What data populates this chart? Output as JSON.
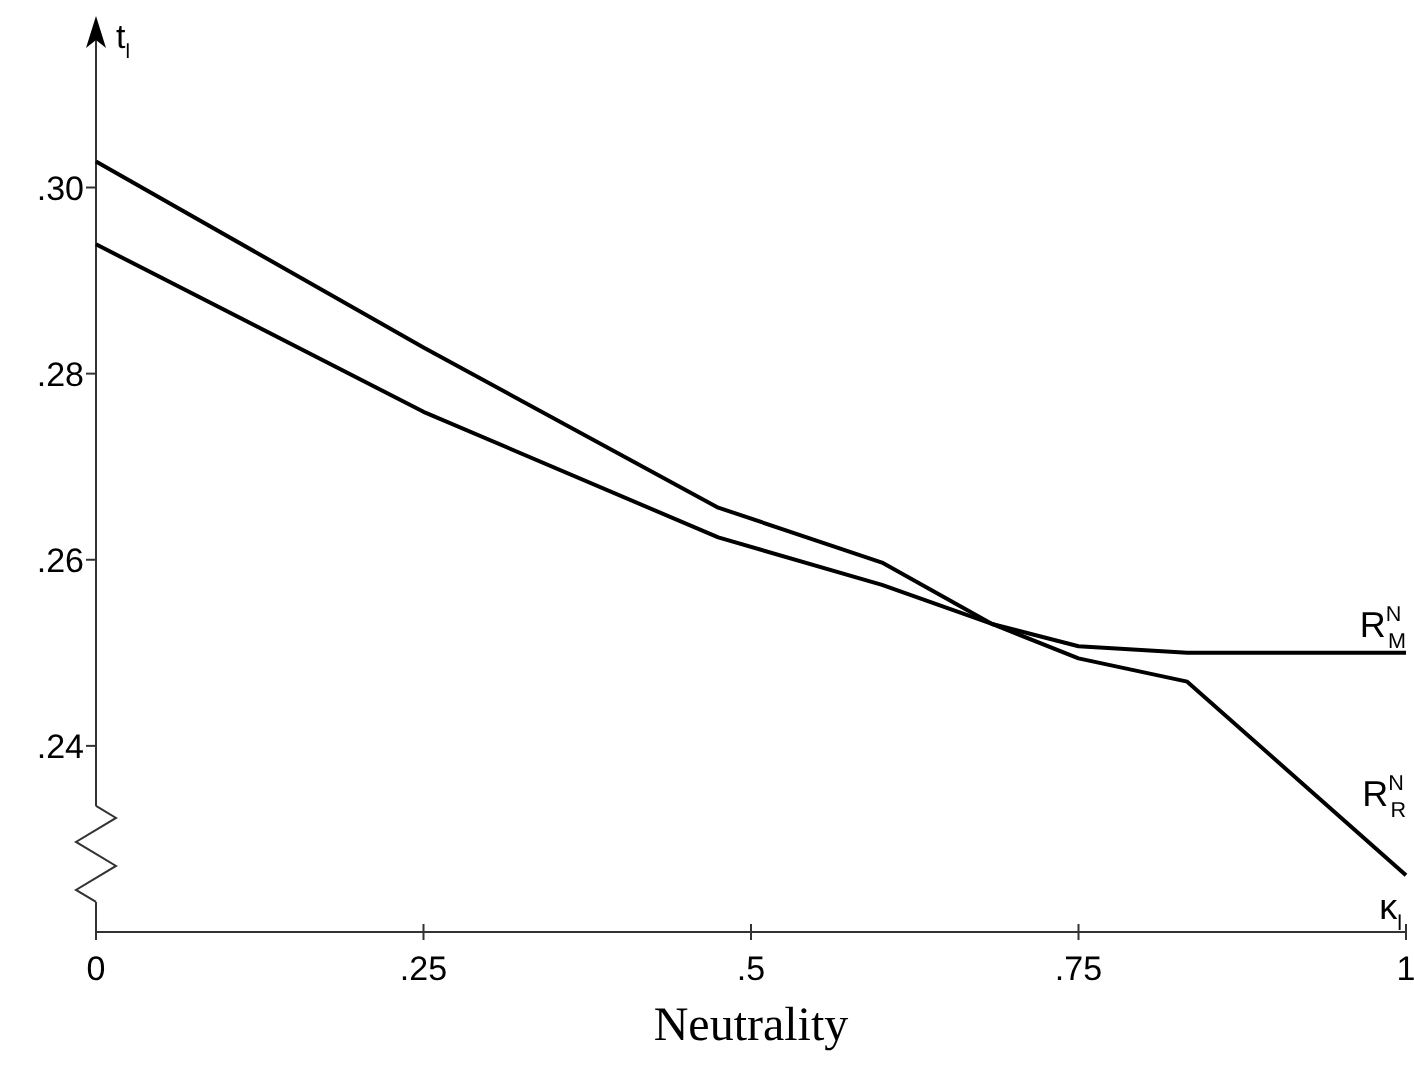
{
  "chart_data": {
    "type": "line",
    "xlabel": "Neutrality",
    "ylabel": "t$_{l}$",
    "xlim": [
      0,
      1
    ],
    "ylim": [
      0.22,
      0.318
    ],
    "xticks": [
      0,
      {
        "value": 0.25,
        "label": ".25"
      },
      {
        "value": 0.5,
        "label": ".5"
      },
      {
        "value": 0.75,
        "label": ".75"
      },
      1
    ],
    "yticks": [
      {
        "value": 0.24,
        "label": ".24"
      },
      {
        "value": 0.26,
        "label": ".26"
      },
      {
        "value": 0.28,
        "label": ".28"
      },
      {
        "value": 0.3,
        "label": ".30"
      }
    ],
    "grid": false,
    "marker": "none",
    "line_style": "solid",
    "series": [
      {
        "name": "R$^{N}$$_{M}$",
        "color": "#000000",
        "x": [
          0,
          0.25,
          0.475,
          0.6,
          0.684,
          0.75,
          0.833,
          1
        ],
        "values": [
          0.2939,
          0.2759,
          0.2624,
          0.2573,
          0.2531,
          0.2507,
          0.25,
          0.25
        ]
      },
      {
        "name": "R$^{N}$$_{R}$",
        "color": "#000000",
        "x": [
          0,
          0.25,
          0.475,
          0.6,
          0.684,
          0.75,
          0.833,
          1
        ],
        "values": [
          0.3028,
          0.2828,
          0.2656,
          0.2597,
          0.2531,
          0.2494,
          0.2469,
          0.2261
        ]
      }
    ],
    "annotations": [
      {
        "text": "κ$_{l}$",
        "x": 1,
        "y": 0.2261
      }
    ]
  }
}
